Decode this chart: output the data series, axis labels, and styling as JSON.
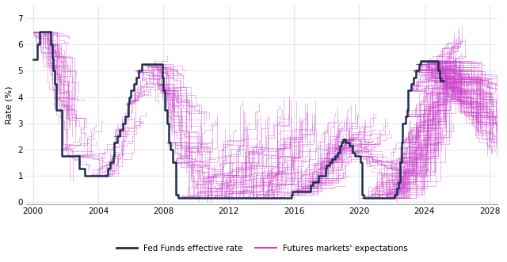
{
  "ffr_color": "#1c2f50",
  "futures_color": "#cc44cc",
  "futures_alpha": 0.5,
  "futures_linewidth": 0.5,
  "ffr_linewidth": 1.8,
  "ylabel": "Rate (%)",
  "ylim": [
    -0.1,
    7.5
  ],
  "yticks": [
    0,
    1,
    2,
    3,
    4,
    5,
    6,
    7
  ],
  "xlim": [
    1999.6,
    2028.5
  ],
  "xticks": [
    2000,
    2004,
    2008,
    2012,
    2016,
    2020,
    2024,
    2028
  ],
  "background_color": "#ffffff",
  "grid_color": "#dde8f0",
  "legend_ffr_label": "Fed Funds effective rate",
  "legend_futures_label": "Futures markets' expectations",
  "ffr_data": {
    "dates": [
      2000.0,
      2000.08,
      2000.17,
      2000.25,
      2000.42,
      2000.5,
      2000.83,
      2001.0,
      2001.08,
      2001.17,
      2001.25,
      2001.33,
      2001.42,
      2001.75,
      2001.92,
      2002.0,
      2002.5,
      2002.83,
      2003.0,
      2003.17,
      2003.5,
      2003.83,
      2004.0,
      2004.42,
      2004.58,
      2004.75,
      2004.92,
      2005.0,
      2005.17,
      2005.33,
      2005.5,
      2005.67,
      2005.83,
      2005.92,
      2006.0,
      2006.17,
      2006.33,
      2006.5,
      2006.67,
      2007.0,
      2007.75,
      2007.92,
      2008.0,
      2008.08,
      2008.25,
      2008.33,
      2008.42,
      2008.58,
      2008.75,
      2008.92,
      2009.0,
      2009.08,
      2015.83,
      2015.92,
      2016.0,
      2016.92,
      2017.0,
      2017.17,
      2017.5,
      2017.92,
      2018.0,
      2018.17,
      2018.33,
      2018.5,
      2018.67,
      2018.83,
      2018.92,
      2019.0,
      2019.17,
      2019.42,
      2019.58,
      2019.75,
      2019.92,
      2020.0,
      2020.08,
      2020.17,
      2020.25,
      2022.0,
      2022.17,
      2022.33,
      2022.42,
      2022.5,
      2022.58,
      2022.67,
      2022.75,
      2022.83,
      2022.92,
      2023.0,
      2023.17,
      2023.33,
      2023.5,
      2023.67,
      2023.75,
      2024.0,
      2024.67,
      2024.83,
      2024.92,
      2025.0
    ],
    "values": [
      5.45,
      5.45,
      5.45,
      6.0,
      6.5,
      6.5,
      6.5,
      6.5,
      6.0,
      5.5,
      5.0,
      4.5,
      3.5,
      1.75,
      1.75,
      1.75,
      1.75,
      1.25,
      1.25,
      1.0,
      1.0,
      1.0,
      1.0,
      1.0,
      1.25,
      1.5,
      1.75,
      2.25,
      2.5,
      2.75,
      3.0,
      3.25,
      3.75,
      4.0,
      4.25,
      4.5,
      4.75,
      5.0,
      5.25,
      5.25,
      5.25,
      4.75,
      4.25,
      3.5,
      3.0,
      2.25,
      2.0,
      1.5,
      0.25,
      0.125,
      0.125,
      0.125,
      0.25,
      0.375,
      0.375,
      0.375,
      0.625,
      0.75,
      1.0,
      1.25,
      1.375,
      1.5,
      1.625,
      1.75,
      1.875,
      2.125,
      2.25,
      2.375,
      2.25,
      2.125,
      1.875,
      1.75,
      1.75,
      1.75,
      1.5,
      0.25,
      0.125,
      0.125,
      0.25,
      0.5,
      0.75,
      1.5,
      2.25,
      3.0,
      3.0,
      3.25,
      3.5,
      4.25,
      4.5,
      4.75,
      5.0,
      5.25,
      5.375,
      5.375,
      5.375,
      5.0,
      4.75,
      4.625
    ]
  }
}
